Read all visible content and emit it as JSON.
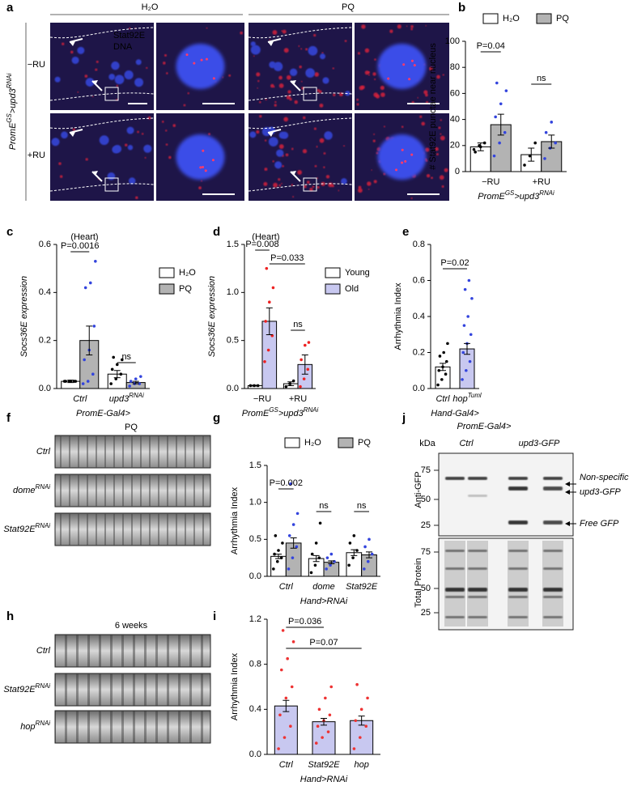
{
  "panel_a": {
    "panel": "a",
    "columns": [
      "H₂O",
      "PQ"
    ],
    "rows": [
      "−RU",
      "+RU"
    ],
    "ylabel": [
      "PromE",
      "GS",
      ">upd3",
      "RNAi"
    ],
    "stain_labels": [
      "Stat92E",
      "DNA"
    ]
  },
  "panel_f": {
    "panel": "f",
    "title": "PQ",
    "rows": [
      [
        "Ctrl"
      ],
      [
        "dome",
        "RNAi"
      ],
      [
        "Stat92E",
        "RNAi"
      ]
    ]
  },
  "panel_h": {
    "panel": "h",
    "title": "6 weeks",
    "rows": [
      [
        "Ctrl"
      ],
      [
        "Stat92E",
        "RNAi"
      ],
      [
        "hop",
        "RNAi"
      ]
    ]
  },
  "panel_j": {
    "panel": "j",
    "title": "PromE-Gal4>",
    "unit": "kDa",
    "lanes": [
      "Ctrl",
      "upd3-GFP"
    ],
    "blots": [
      {
        "label": "Anti-GFP",
        "markers": [
          75,
          50,
          25
        ]
      },
      {
        "label": "Total Protein",
        "markers": [
          75,
          50,
          25
        ]
      }
    ],
    "bands": [
      "Non-specific",
      "upd3-GFP",
      "Free GFP"
    ]
  },
  "chart_data": [
    {
      "panel": "b",
      "type": "bar",
      "ylabel": "# Stat92E punctae near nucleus",
      "xlabel": [
        "PromE",
        "GS",
        ">upd3",
        "RNAi"
      ],
      "categories": [
        "−RU",
        "+RU"
      ],
      "ylim": [
        0,
        100
      ],
      "yticks": [
        0,
        20,
        40,
        60,
        80,
        100
      ],
      "legend": "top",
      "series": [
        {
          "name": "H₂O",
          "color": "#ffffff",
          "point_color": "#000000",
          "values": [
            19,
            13
          ],
          "errors": [
            3,
            5
          ],
          "points": [
            [
              17,
              20,
              22,
              15,
              19
            ],
            [
              5,
              12,
              22
            ]
          ]
        },
        {
          "name": "PQ",
          "color": "#b3b3b3",
          "point_color": "#3344dd",
          "values": [
            36,
            23
          ],
          "errors": [
            8,
            5
          ],
          "points": [
            [
              12,
              22,
              30,
              42,
              52,
              62,
              68
            ],
            [
              10,
              18,
              22,
              30,
              38
            ]
          ]
        }
      ],
      "annotations": [
        "P=0.04",
        "ns"
      ]
    },
    {
      "panel": "c",
      "type": "bar",
      "subtitle": "(Heart)",
      "ylabel": "Socs36E expression",
      "xlabel": [
        "PromE-Gal4>"
      ],
      "categories": [
        "Ctrl",
        [
          "upd3",
          "RNAi"
        ]
      ],
      "italic_categories": true,
      "ylim": [
        0,
        0.6
      ],
      "yticks": [
        {
          "value": 0,
          "label": "0.0"
        },
        0.2,
        0.4,
        0.6
      ],
      "legend": "right",
      "series": [
        {
          "name": "H₂O",
          "color": "#ffffff",
          "point_color": "#000000",
          "values": [
            0.03,
            0.06
          ],
          "errors": [
            0.005,
            0.015
          ],
          "points": [
            [
              0.03,
              0.03,
              0.03,
              0.03,
              0.03,
              0.03
            ],
            [
              0.02,
              0.04,
              0.06,
              0.08,
              0.1,
              0.12,
              0.13
            ]
          ]
        },
        {
          "name": "PQ",
          "color": "#b3b3b3",
          "point_color": "#3344dd",
          "values": [
            0.2,
            0.025
          ],
          "errors": [
            0.06,
            0.005
          ],
          "points": [
            [
              0.02,
              0.03,
              0.06,
              0.12,
              0.16,
              0.26,
              0.42,
              0.44,
              0.53
            ],
            [
              0.01,
              0.02,
              0.02,
              0.03,
              0.04,
              0.05
            ]
          ]
        }
      ],
      "annotations": [
        "P=0.0016",
        "ns"
      ]
    },
    {
      "panel": "d",
      "type": "bar",
      "subtitle": "(Heart)",
      "ylabel": "Socs36E expression",
      "xlabel": [
        "PromE",
        "GS",
        ">upd3",
        "RNAi"
      ],
      "categories": [
        "−RU",
        "+RU"
      ],
      "ylim": [
        0,
        1.5
      ],
      "yticks": [
        {
          "value": 0,
          "label": "0.0"
        },
        0.5,
        {
          "value": 1,
          "label": "1.0"
        },
        1.5
      ],
      "legend": "right",
      "series": [
        {
          "name": "Young",
          "color": "#ffffff",
          "point_color": "#000000",
          "values": [
            0.03,
            0.05
          ],
          "errors": [
            0.005,
            0.02
          ],
          "points": [
            [
              0.03,
              0.03,
              0.03
            ],
            [
              0.02,
              0.05,
              0.08
            ]
          ]
        },
        {
          "name": "Old",
          "color": "#c8c8f0",
          "point_color": "#ee2222",
          "values": [
            0.7,
            0.25
          ],
          "errors": [
            0.14,
            0.1
          ],
          "points": [
            [
              0.28,
              0.4,
              0.55,
              0.7,
              0.9,
              1.05,
              1.25
            ],
            [
              0.02,
              0.1,
              0.2,
              0.3,
              0.45,
              0.48
            ]
          ]
        }
      ],
      "annotations": [
        "P=0.008",
        "P=0.033",
        "ns"
      ]
    },
    {
      "panel": "e",
      "type": "bar",
      "ylabel": "Arrhythmia Index",
      "xlabel": [
        "Hand-Gal4>"
      ],
      "categories": [
        "Ctrl",
        [
          "hop",
          "Tuml"
        ]
      ],
      "italic_categories": true,
      "ylim": [
        0,
        0.8
      ],
      "yticks": [
        {
          "value": 0,
          "label": "0.0"
        },
        0.2,
        0.4,
        0.6,
        0.8
      ],
      "series": [
        {
          "colors": [
            "#ffffff",
            "#c8c8f0"
          ],
          "point_colors": [
            "#000000",
            "#3344dd"
          ],
          "values": [
            0.12,
            0.22
          ],
          "errors": [
            0.02,
            0.03
          ],
          "points": [
            [
              0.02,
              0.05,
              0.08,
              0.1,
              0.12,
              0.15,
              0.18,
              0.2,
              0.25
            ],
            [
              0.05,
              0.1,
              0.15,
              0.2,
              0.25,
              0.3,
              0.35,
              0.4,
              0.5,
              0.55,
              0.6
            ]
          ]
        }
      ],
      "annotations": [
        "P=0.02"
      ]
    },
    {
      "panel": "g",
      "type": "bar",
      "ylabel": "Arrhythmia Index",
      "xlabel": [
        "Hand>RNAi"
      ],
      "categories": [
        "Ctrl",
        "dome",
        "Stat92E"
      ],
      "italic_categories": true,
      "ylim": [
        0,
        1.5
      ],
      "yticks": [
        {
          "value": 0,
          "label": "0.0"
        },
        0.5,
        {
          "value": 1,
          "label": "1.0"
        },
        1.5
      ],
      "legend": "top",
      "series": [
        {
          "name": "H₂O",
          "color": "#ffffff",
          "point_color": "#000000",
          "values": [
            0.27,
            0.24,
            0.32
          ],
          "errors": [
            0.03,
            0.04,
            0.04
          ],
          "points": [
            [
              0.1,
              0.2,
              0.25,
              0.3,
              0.35,
              0.45,
              0.55
            ],
            [
              0.05,
              0.15,
              0.25,
              0.3,
              0.45,
              0.72
            ],
            [
              0.15,
              0.25,
              0.35,
              0.45,
              0.55
            ]
          ]
        },
        {
          "name": "PQ",
          "color": "#b3b3b3",
          "point_color": "#3344dd",
          "values": [
            0.45,
            0.19,
            0.29
          ],
          "errors": [
            0.07,
            0.02,
            0.04
          ],
          "points": [
            [
              0.1,
              0.25,
              0.4,
              0.55,
              0.7,
              0.85,
              1.25
            ],
            [
              0.1,
              0.15,
              0.2,
              0.25,
              0.3
            ],
            [
              0.1,
              0.2,
              0.3,
              0.4,
              0.5
            ]
          ]
        }
      ],
      "annotations": [
        "P=0.002",
        "ns",
        "ns"
      ]
    },
    {
      "panel": "i",
      "type": "bar",
      "ylabel": "Arrhythmia Index",
      "xlabel": [
        "Hand>RNAi"
      ],
      "categories": [
        "Ctrl",
        "Stat92E",
        "hop"
      ],
      "italic_categories": true,
      "ylim": [
        0,
        1.2
      ],
      "yticks": [
        {
          "value": 0,
          "label": "0.0"
        },
        0.4,
        0.8,
        1.2
      ],
      "series": [
        {
          "color": "#c8c8f0",
          "point_color": "#ee3333",
          "values": [
            0.43,
            0.29,
            0.3
          ],
          "errors": [
            0.05,
            0.03,
            0.04
          ],
          "points": [
            [
              0.05,
              0.15,
              0.25,
              0.35,
              0.5,
              0.6,
              0.75,
              0.85,
              1.0,
              1.1
            ],
            [
              0.1,
              0.15,
              0.2,
              0.25,
              0.3,
              0.35,
              0.4,
              0.5,
              0.6
            ],
            [
              0.05,
              0.15,
              0.25,
              0.3,
              0.4,
              0.5,
              0.62
            ]
          ]
        }
      ],
      "annotations": [
        "P=0.036",
        "P=0.07"
      ]
    }
  ]
}
